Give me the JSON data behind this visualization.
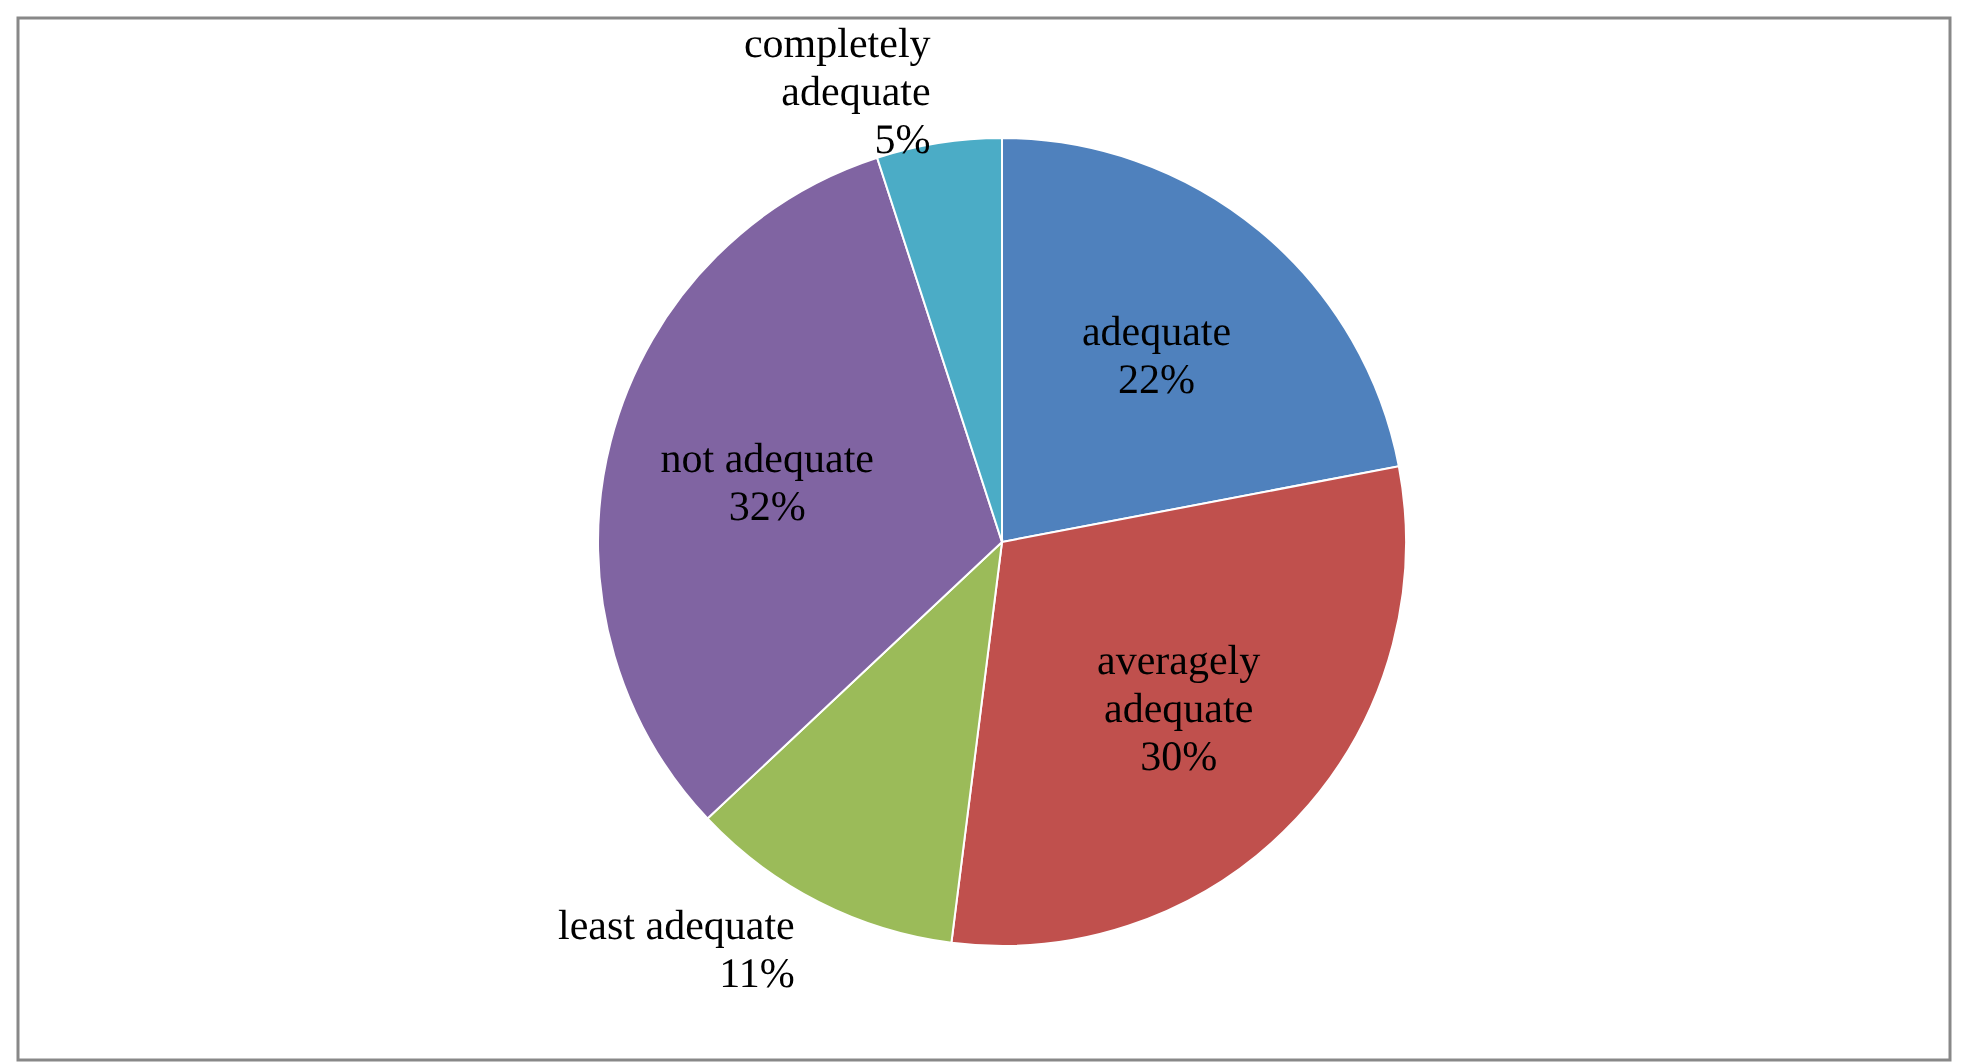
{
  "chart_data": {
    "type": "pie",
    "categories": [
      "adequate",
      "averagely adequate",
      "least adequate",
      "not adequate",
      "completely adequate"
    ],
    "values": [
      22,
      30,
      11,
      32,
      5
    ],
    "colors": [
      "#4f81bd",
      "#c0504d",
      "#9bbb59",
      "#8064a2",
      "#4bacc6"
    ],
    "value_labels": [
      "22%",
      "30%",
      "11%",
      "32%",
      "5%"
    ]
  }
}
